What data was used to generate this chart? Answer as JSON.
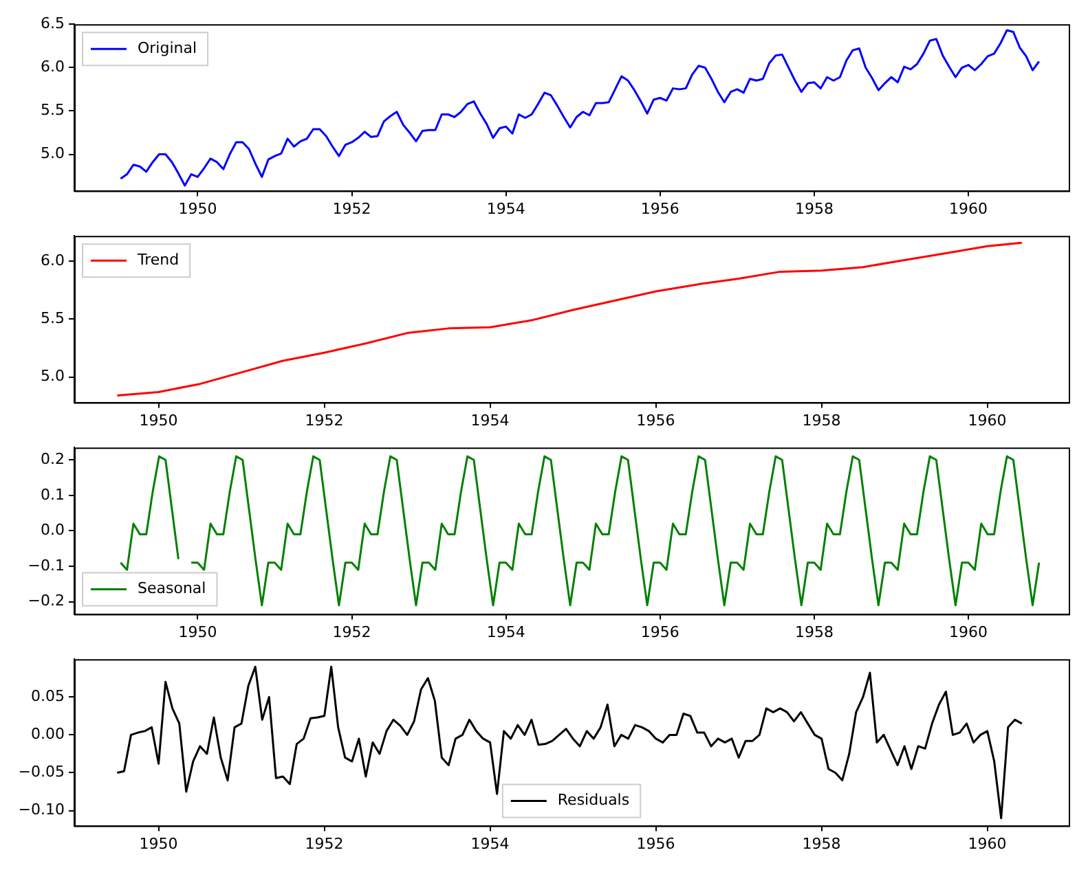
{
  "chart_data": [
    {
      "type": "line",
      "legend": "top left",
      "xlim": [
        "1948-05-25",
        "1961-04-20"
      ],
      "ylim": [
        4.58,
        6.5
      ],
      "xticks": [
        "1950",
        "1952",
        "1954",
        "1956",
        "1958",
        "1960"
      ],
      "yticks": [
        {
          "value": 5.0,
          "label": "5.0"
        },
        {
          "value": 5.5,
          "label": "5.5"
        },
        {
          "value": 6.0,
          "label": "6.0"
        },
        {
          "value": 6.5,
          "label": "6.5"
        }
      ],
      "x": [
        "1949-01",
        "1949-02",
        "1949-03",
        "1949-04",
        "1949-05",
        "1949-06",
        "1949-07",
        "1949-08",
        "1949-09",
        "1949-10",
        "1949-11",
        "1949-12",
        "1950-01",
        "1950-02",
        "1950-03",
        "1950-04",
        "1950-05",
        "1950-06",
        "1950-07",
        "1950-08",
        "1950-09",
        "1950-10",
        "1950-11",
        "1950-12",
        "1951-01",
        "1951-02",
        "1951-03",
        "1951-04",
        "1951-05",
        "1951-06",
        "1951-07",
        "1951-08",
        "1951-09",
        "1951-10",
        "1951-11",
        "1951-12",
        "1952-01",
        "1952-02",
        "1952-03",
        "1952-04",
        "1952-05",
        "1952-06",
        "1952-07",
        "1952-08",
        "1952-09",
        "1952-10",
        "1952-11",
        "1952-12",
        "1953-01",
        "1953-02",
        "1953-03",
        "1953-04",
        "1953-05",
        "1953-06",
        "1953-07",
        "1953-08",
        "1953-09",
        "1953-10",
        "1953-11",
        "1953-12",
        "1954-01",
        "1954-02",
        "1954-03",
        "1954-04",
        "1954-05",
        "1954-06",
        "1954-07",
        "1954-08",
        "1954-09",
        "1954-10",
        "1954-11",
        "1954-12",
        "1955-01",
        "1955-02",
        "1955-03",
        "1955-04",
        "1955-05",
        "1955-06",
        "1955-07",
        "1955-08",
        "1955-09",
        "1955-10",
        "1955-11",
        "1955-12",
        "1956-01",
        "1956-02",
        "1956-03",
        "1956-04",
        "1956-05",
        "1956-06",
        "1956-07",
        "1956-08",
        "1956-09",
        "1956-10",
        "1956-11",
        "1956-12",
        "1957-01",
        "1957-02",
        "1957-03",
        "1957-04",
        "1957-05",
        "1957-06",
        "1957-07",
        "1957-08",
        "1957-09",
        "1957-10",
        "1957-11",
        "1957-12",
        "1958-01",
        "1958-02",
        "1958-03",
        "1958-04",
        "1958-05",
        "1958-06",
        "1958-07",
        "1958-08",
        "1958-09",
        "1958-10",
        "1958-11",
        "1958-12",
        "1959-01",
        "1959-02",
        "1959-03",
        "1959-04",
        "1959-05",
        "1959-06",
        "1959-07",
        "1959-08",
        "1959-09",
        "1959-10",
        "1959-11",
        "1959-12",
        "1960-01",
        "1960-02",
        "1960-03",
        "1960-04",
        "1960-05",
        "1960-06",
        "1960-07",
        "1960-08",
        "1960-09",
        "1960-10",
        "1960-11",
        "1960-12"
      ],
      "series": [
        {
          "name": "Original",
          "color": "#0000ff",
          "values": [
            4.72,
            4.77,
            4.88,
            4.86,
            4.8,
            4.91,
            5.0,
            5.0,
            4.91,
            4.78,
            4.64,
            4.77,
            4.74,
            4.84,
            4.95,
            4.91,
            4.83,
            5.0,
            5.14,
            5.14,
            5.06,
            4.89,
            4.74,
            4.94,
            4.98,
            5.01,
            5.18,
            5.09,
            5.15,
            5.18,
            5.29,
            5.29,
            5.21,
            5.09,
            4.98,
            5.11,
            5.14,
            5.19,
            5.26,
            5.2,
            5.21,
            5.38,
            5.44,
            5.49,
            5.34,
            5.25,
            5.15,
            5.27,
            5.28,
            5.28,
            5.46,
            5.46,
            5.43,
            5.49,
            5.58,
            5.61,
            5.47,
            5.35,
            5.19,
            5.3,
            5.32,
            5.24,
            5.46,
            5.42,
            5.46,
            5.58,
            5.71,
            5.68,
            5.56,
            5.43,
            5.31,
            5.43,
            5.49,
            5.45,
            5.59,
            5.59,
            5.6,
            5.75,
            5.9,
            5.85,
            5.74,
            5.61,
            5.47,
            5.63,
            5.65,
            5.62,
            5.76,
            5.75,
            5.76,
            5.92,
            6.02,
            6.0,
            5.87,
            5.72,
            5.6,
            5.72,
            5.75,
            5.71,
            5.87,
            5.85,
            5.87,
            6.05,
            6.14,
            6.15,
            6.0,
            5.85,
            5.72,
            5.82,
            5.83,
            5.76,
            5.89,
            5.85,
            5.89,
            6.08,
            6.2,
            6.22,
            6.0,
            5.88,
            5.74,
            5.82,
            5.89,
            5.83,
            6.01,
            5.98,
            6.04,
            6.16,
            6.31,
            6.33,
            6.14,
            6.01,
            5.89,
            6.0,
            6.03,
            5.97,
            6.04,
            6.13,
            6.16,
            6.28,
            6.43,
            6.41,
            6.23,
            6.13,
            5.97,
            6.07
          ]
        }
      ]
    },
    {
      "type": "line",
      "legend": "top left",
      "xlim": [
        "1948-12-25",
        "1960-12-25"
      ],
      "ylim": [
        4.78,
        6.22
      ],
      "xticks": [
        "1950",
        "1952",
        "1954",
        "1956",
        "1958",
        "1960"
      ],
      "yticks": [
        {
          "value": 5.0,
          "label": "5.0"
        },
        {
          "value": 5.5,
          "label": "5.5"
        },
        {
          "value": 6.0,
          "label": "6.0"
        }
      ],
      "x": [
        "1949-07",
        "1950-01",
        "1950-07",
        "1951-01",
        "1951-07",
        "1952-01",
        "1952-07",
        "1953-01",
        "1953-07",
        "1954-01",
        "1954-07",
        "1955-01",
        "1955-07",
        "1956-01",
        "1956-07",
        "1957-01",
        "1957-07",
        "1958-01",
        "1958-07",
        "1959-01",
        "1959-07",
        "1960-01",
        "1960-06"
      ],
      "series": [
        {
          "name": "Trend",
          "color": "#ff0000",
          "values": [
            4.84,
            4.87,
            4.94,
            5.04,
            5.14,
            5.21,
            5.29,
            5.38,
            5.42,
            5.43,
            5.49,
            5.58,
            5.66,
            5.74,
            5.8,
            5.85,
            5.91,
            5.92,
            5.95,
            6.01,
            6.07,
            6.13,
            6.16
          ]
        }
      ]
    },
    {
      "type": "line",
      "legend": "bottom left",
      "xlim": [
        "1948-05-25",
        "1961-04-20"
      ],
      "ylim": [
        -0.235,
        0.235
      ],
      "xticks": [
        "1950",
        "1952",
        "1954",
        "1956",
        "1958",
        "1960"
      ],
      "yticks": [
        {
          "value": -0.2,
          "label": "−0.2"
        },
        {
          "value": -0.1,
          "label": "−0.1"
        },
        {
          "value": 0.0,
          "label": "0.0"
        },
        {
          "value": 0.1,
          "label": "0.1"
        },
        {
          "value": 0.2,
          "label": "0.2"
        }
      ],
      "x": [
        "1949-01",
        "1949-02",
        "1949-03",
        "1949-04",
        "1949-05",
        "1949-06",
        "1949-07",
        "1949-08",
        "1949-09",
        "1949-10",
        "1949-11",
        "1949-12",
        "1950-01",
        "1950-02",
        "1950-03",
        "1950-04",
        "1950-05",
        "1950-06",
        "1950-07",
        "1950-08",
        "1950-09",
        "1950-10",
        "1950-11",
        "1950-12",
        "1951-01",
        "1951-02",
        "1951-03",
        "1951-04",
        "1951-05",
        "1951-06",
        "1951-07",
        "1951-08",
        "1951-09",
        "1951-10",
        "1951-11",
        "1951-12",
        "1952-01",
        "1952-02",
        "1952-03",
        "1952-04",
        "1952-05",
        "1952-06",
        "1952-07",
        "1952-08",
        "1952-09",
        "1952-10",
        "1952-11",
        "1952-12",
        "1953-01",
        "1953-02",
        "1953-03",
        "1953-04",
        "1953-05",
        "1953-06",
        "1953-07",
        "1953-08",
        "1953-09",
        "1953-10",
        "1953-11",
        "1953-12",
        "1954-01",
        "1954-02",
        "1954-03",
        "1954-04",
        "1954-05",
        "1954-06",
        "1954-07",
        "1954-08",
        "1954-09",
        "1954-10",
        "1954-11",
        "1954-12",
        "1955-01",
        "1955-02",
        "1955-03",
        "1955-04",
        "1955-05",
        "1955-06",
        "1955-07",
        "1955-08",
        "1955-09",
        "1955-10",
        "1955-11",
        "1955-12",
        "1956-01",
        "1956-02",
        "1956-03",
        "1956-04",
        "1956-05",
        "1956-06",
        "1956-07",
        "1956-08",
        "1956-09",
        "1956-10",
        "1956-11",
        "1956-12",
        "1957-01",
        "1957-02",
        "1957-03",
        "1957-04",
        "1957-05",
        "1957-06",
        "1957-07",
        "1957-08",
        "1957-09",
        "1957-10",
        "1957-11",
        "1957-12",
        "1958-01",
        "1958-02",
        "1958-03",
        "1958-04",
        "1958-05",
        "1958-06",
        "1958-07",
        "1958-08",
        "1958-09",
        "1958-10",
        "1958-11",
        "1958-12",
        "1959-01",
        "1959-02",
        "1959-03",
        "1959-04",
        "1959-05",
        "1959-06",
        "1959-07",
        "1959-08",
        "1959-09",
        "1959-10",
        "1959-11",
        "1959-12",
        "1960-01",
        "1960-02",
        "1960-03",
        "1960-04",
        "1960-05",
        "1960-06",
        "1960-07",
        "1960-08",
        "1960-09",
        "1960-10",
        "1960-11",
        "1960-12"
      ],
      "series": [
        {
          "name": "Seasonal",
          "color": "#008000",
          "values": [
            -0.09,
            -0.11,
            0.02,
            -0.01,
            -0.01,
            0.11,
            0.21,
            0.2,
            0.06,
            -0.08,
            null,
            -0.09,
            -0.09,
            -0.11,
            0.02,
            -0.01,
            -0.01,
            0.11,
            0.21,
            0.2,
            0.06,
            -0.08,
            -0.21,
            -0.09,
            -0.09,
            -0.11,
            0.02,
            -0.01,
            -0.01,
            0.11,
            0.21,
            0.2,
            0.06,
            -0.08,
            -0.21,
            -0.09,
            -0.09,
            -0.11,
            0.02,
            -0.01,
            -0.01,
            0.11,
            0.21,
            0.2,
            0.06,
            -0.08,
            -0.21,
            -0.09,
            -0.09,
            -0.11,
            0.02,
            -0.01,
            -0.01,
            0.11,
            0.21,
            0.2,
            0.06,
            -0.08,
            -0.21,
            -0.09,
            -0.09,
            -0.11,
            0.02,
            -0.01,
            -0.01,
            0.11,
            0.21,
            0.2,
            0.06,
            -0.08,
            -0.21,
            -0.09,
            -0.09,
            -0.11,
            0.02,
            -0.01,
            -0.01,
            0.11,
            0.21,
            0.2,
            0.06,
            -0.08,
            -0.21,
            -0.09,
            -0.09,
            -0.11,
            0.02,
            -0.01,
            -0.01,
            0.11,
            0.21,
            0.2,
            0.06,
            -0.08,
            -0.21,
            -0.09,
            -0.09,
            -0.11,
            0.02,
            -0.01,
            -0.01,
            0.11,
            0.21,
            0.2,
            0.06,
            -0.08,
            -0.21,
            -0.09,
            -0.09,
            -0.11,
            0.02,
            -0.01,
            -0.01,
            0.11,
            0.21,
            0.2,
            0.06,
            -0.08,
            -0.21,
            -0.09,
            -0.09,
            -0.11,
            0.02,
            -0.01,
            -0.01,
            0.11,
            0.21,
            0.2,
            0.06,
            -0.08,
            -0.21,
            -0.09,
            -0.09,
            -0.11,
            0.02,
            -0.01,
            -0.01,
            0.11,
            0.21,
            0.2,
            0.06,
            -0.08,
            -0.21,
            -0.09
          ]
        }
      ]
    },
    {
      "type": "line",
      "legend": "bottom",
      "xlim": [
        "1948-12-25",
        "1960-12-25"
      ],
      "ylim": [
        -0.12,
        0.1
      ],
      "xticks": [
        "1950",
        "1952",
        "1954",
        "1956",
        "1958",
        "1960"
      ],
      "yticks": [
        {
          "value": -0.1,
          "label": "−0.10"
        },
        {
          "value": -0.05,
          "label": "−0.05"
        },
        {
          "value": 0.0,
          "label": "0.00"
        },
        {
          "value": 0.05,
          "label": "0.05"
        }
      ],
      "x": [
        "1949-07",
        "1949-08",
        "1949-09",
        "1949-10",
        "1949-11",
        "1949-12",
        "1950-01",
        "1950-02",
        "1950-03",
        "1950-04",
        "1950-05",
        "1950-06",
        "1950-07",
        "1950-08",
        "1950-09",
        "1950-10",
        "1950-11",
        "1950-12",
        "1951-01",
        "1951-02",
        "1951-03",
        "1951-04",
        "1951-05",
        "1951-06",
        "1951-07",
        "1951-08",
        "1951-09",
        "1951-10",
        "1951-11",
        "1951-12",
        "1952-01",
        "1952-02",
        "1952-03",
        "1952-04",
        "1952-05",
        "1952-06",
        "1952-07",
        "1952-08",
        "1952-09",
        "1952-10",
        "1952-11",
        "1952-12",
        "1953-01",
        "1953-02",
        "1953-03",
        "1953-04",
        "1953-05",
        "1953-06",
        "1953-07",
        "1953-08",
        "1953-09",
        "1953-10",
        "1953-11",
        "1953-12",
        "1954-01",
        "1954-02",
        "1954-03",
        "1954-04",
        "1954-05",
        "1954-06",
        "1954-07",
        "1954-08",
        "1954-09",
        "1954-10",
        "1954-11",
        "1954-12",
        "1955-01",
        "1955-02",
        "1955-03",
        "1955-04",
        "1955-05",
        "1955-06",
        "1955-07",
        "1955-08",
        "1955-09",
        "1955-10",
        "1955-11",
        "1955-12",
        "1956-01",
        "1956-02",
        "1956-03",
        "1956-04",
        "1956-05",
        "1956-06",
        "1956-07",
        "1956-08",
        "1956-09",
        "1956-10",
        "1956-11",
        "1956-12",
        "1957-01",
        "1957-02",
        "1957-03",
        "1957-04",
        "1957-05",
        "1957-06",
        "1957-07",
        "1957-08",
        "1957-09",
        "1957-10",
        "1957-11",
        "1957-12",
        "1958-01",
        "1958-02",
        "1958-03",
        "1958-04",
        "1958-05",
        "1958-06",
        "1958-07",
        "1958-08",
        "1958-09",
        "1958-10",
        "1958-11",
        "1958-12",
        "1959-01",
        "1959-02",
        "1959-03",
        "1959-04",
        "1959-05",
        "1959-06",
        "1959-07",
        "1959-08",
        "1959-09",
        "1959-10",
        "1959-11",
        "1959-12",
        "1960-01",
        "1960-02",
        "1960-03",
        "1960-04",
        "1960-05",
        "1960-06"
      ],
      "series": [
        {
          "name": "Residuals",
          "color": "#000000",
          "values": [
            -0.05,
            -0.048,
            0.0,
            0.003,
            0.005,
            0.01,
            -0.038,
            0.07,
            0.035,
            0.015,
            -0.075,
            -0.035,
            -0.015,
            -0.025,
            0.023,
            -0.03,
            -0.06,
            0.01,
            0.015,
            0.065,
            0.09,
            0.02,
            0.05,
            -0.057,
            -0.055,
            -0.065,
            -0.012,
            -0.005,
            0.022,
            0.023,
            0.025,
            0.09,
            0.01,
            -0.03,
            -0.035,
            -0.005,
            -0.055,
            -0.01,
            -0.025,
            0.005,
            0.02,
            0.012,
            0.0,
            0.018,
            0.06,
            0.075,
            0.045,
            -0.03,
            -0.04,
            -0.005,
            0.0,
            0.02,
            0.005,
            -0.005,
            -0.01,
            -0.078,
            0.005,
            -0.005,
            0.013,
            0.0,
            0.02,
            -0.013,
            -0.012,
            -0.008,
            0.0,
            0.008,
            -0.005,
            -0.015,
            0.005,
            -0.005,
            0.01,
            0.04,
            -0.015,
            0.0,
            -0.005,
            0.013,
            0.01,
            0.005,
            -0.005,
            -0.01,
            0.0,
            0.0,
            0.028,
            0.025,
            0.003,
            0.003,
            -0.015,
            -0.005,
            -0.01,
            -0.005,
            -0.03,
            -0.008,
            -0.008,
            0.0,
            0.035,
            0.03,
            0.035,
            0.03,
            0.018,
            0.03,
            0.015,
            0.0,
            -0.005,
            -0.045,
            -0.05,
            -0.06,
            -0.025,
            0.03,
            0.05,
            0.082,
            -0.01,
            0.0,
            -0.02,
            -0.04,
            -0.015,
            -0.045,
            -0.015,
            -0.018,
            0.015,
            0.04,
            0.057,
            0.0,
            0.003,
            0.015,
            -0.01,
            0.0,
            0.005,
            -0.035,
            -0.11,
            0.01,
            0.02,
            0.015
          ]
        }
      ]
    }
  ]
}
